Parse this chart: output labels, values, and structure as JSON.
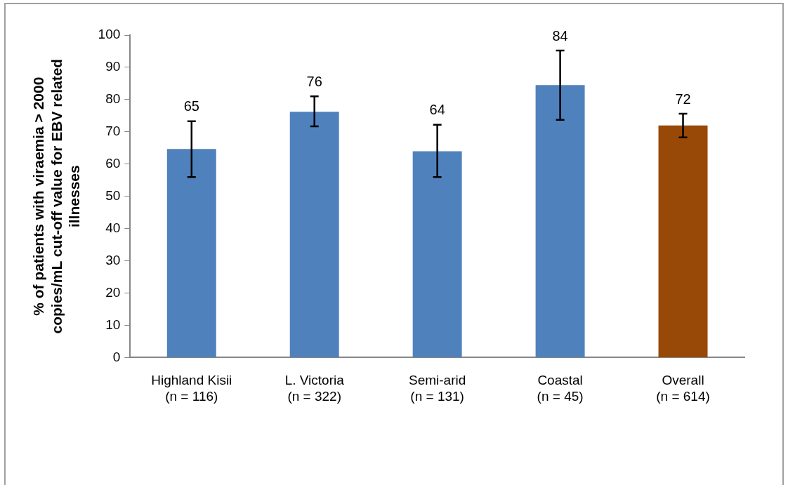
{
  "chart_data": {
    "type": "bar",
    "ylabel": "% of patients with viraemia > 2000 copies/mL cut-off value for EBV related illnesses",
    "categories": [
      "Highland Kisii\n(n = 116)",
      "L. Victoria\n(n = 322)",
      "Semi-arid\n(n = 131)",
      "Coastal\n(n = 45)",
      "Overall\n(n = 614)"
    ],
    "values": [
      64.7,
      76.2,
      64.0,
      84.5,
      72.0
    ],
    "colors": [
      "#4f81bd",
      "#4f81bd",
      "#4f81bd",
      "#4f81bd",
      "#984807"
    ],
    "errors": [
      [
        56,
        73.3
      ],
      [
        71.7,
        81
      ],
      [
        56,
        72.2
      ],
      [
        73.7,
        95.2
      ],
      [
        68.3,
        75.6
      ]
    ],
    "value_labels": [
      "65",
      "76",
      "64",
      "84",
      "72"
    ],
    "ylim": [
      0,
      100
    ],
    "yticks": [
      0,
      10,
      20,
      30,
      40,
      50,
      60,
      70,
      80,
      90,
      100
    ],
    "grid": false,
    "legend": false
  }
}
